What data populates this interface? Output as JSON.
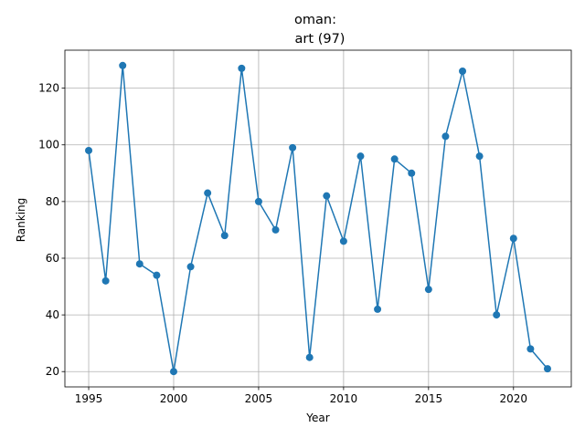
{
  "chart_data": {
    "type": "line",
    "title_line1": "oman:",
    "title_line2": "art (97)",
    "xlabel": "Year",
    "ylabel": "Ranking",
    "xlim": [
      1993.6,
      2023.4
    ],
    "ylim": [
      14.6,
      133.4
    ],
    "x_ticks": [
      1995,
      2000,
      2005,
      2010,
      2015,
      2020
    ],
    "y_ticks": [
      20,
      40,
      60,
      80,
      100,
      120
    ],
    "grid": true,
    "series": [
      {
        "color": "#1f77b4",
        "marker": "circle",
        "x": [
          1995,
          1996,
          1997,
          1998,
          1999,
          2000,
          2001,
          2002,
          2003,
          2004,
          2005,
          2006,
          2007,
          2008,
          2009,
          2010,
          2011,
          2012,
          2013,
          2014,
          2015,
          2016,
          2017,
          2018,
          2019,
          2020,
          2021,
          2022
        ],
        "y": [
          98,
          52,
          128,
          58,
          54,
          20,
          57,
          83,
          68,
          127,
          80,
          70,
          99,
          25,
          82,
          66,
          96,
          42,
          95,
          90,
          49,
          103,
          126,
          96,
          40,
          67,
          28,
          21
        ]
      }
    ]
  }
}
